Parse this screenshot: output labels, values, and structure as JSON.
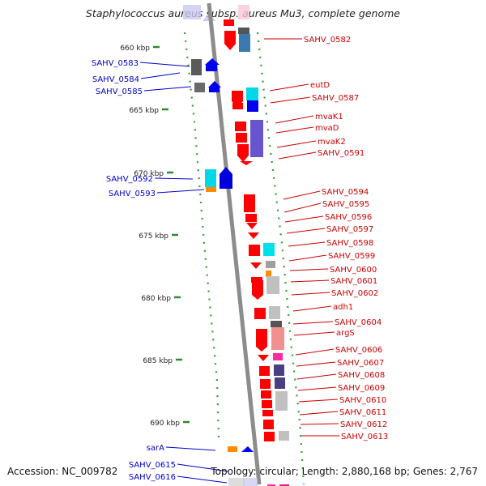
{
  "title": "Staphylococcus aureus subsp. aureus Mu3, complete genome",
  "footer": {
    "accession": "Accession: NC_009782",
    "topology": "Topology: circular; Length: 2,880,168 bp; Genes: 2,767"
  },
  "scale_labels": [
    "660 kbp",
    "665 kbp",
    "670 kbp",
    "675 kbp",
    "680 kbp",
    "685 kbp",
    "690 kbp"
  ],
  "left_labels": [
    "SAHV_0583",
    "SAHV_0584",
    "SAHV_0585",
    "SAHV_0592",
    "SAHV_0593",
    "sarA",
    "SAHV_0615",
    "SAHV_0616"
  ],
  "right_labels": [
    "SAHV_0582",
    "eutD",
    "SAHV_0587",
    "mvaK1",
    "mvaD",
    "mvaK2",
    "SAHV_0591",
    "SAHV_0594",
    "SAHV_0595",
    "SAHV_0596",
    "SAHV_0597",
    "SAHV_0598",
    "SAHV_0599",
    "SAHV_0600",
    "SAHV_0601",
    "SAHV_0602",
    "adh1",
    "SAHV_0604",
    "argS",
    "SAHV_0606",
    "SAHV_0607",
    "SAHV_0608",
    "SAHV_0609",
    "SAHV_0610",
    "SAHV_0611",
    "SAHV_0612",
    "SAHV_0613"
  ],
  "colors": {
    "forward_label": "#cc0000",
    "reverse_label": "#0000cc",
    "forward_gene": "#ff0000",
    "reverse_gene": "#0000ff",
    "backbone": "#8c8c8c",
    "tick": "#2e8b2e",
    "dots": "#2e9e2e"
  }
}
